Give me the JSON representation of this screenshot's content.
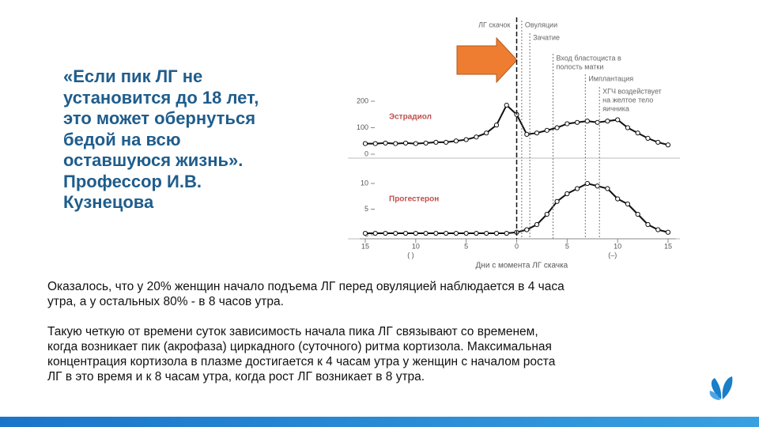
{
  "quote_lines": [
    "«Если пик ЛГ не",
    "установится до 18 лет,",
    "это может обернуться",
    "бедой на всю",
    "оставшуюся жизнь».",
    "Профессор И.В.",
    "Кузнецова"
  ],
  "paragraphs": [
    [
      "Оказалось, что у 20% женщин начало подъема ЛГ перед овуляцией наблюдается в 4 часа",
      "утра, а у остальных 80% - в 8 часов утра."
    ],
    [
      "Такую четкую от времени суток зависимость начала пика ЛГ связывают со временем,",
      "когда возникает пик (акрофаза) циркадного (суточного) ритма кортизола. Максимальная",
      "концентрация кортизола в плазме достигается к 4 часам утра у женщин с началом роста",
      "ЛГ в это время и к 8 часам утра, когда рост ЛГ возникает в 8 утра."
    ]
  ],
  "figure": {
    "type": "line",
    "x": [
      -15,
      -14,
      -13,
      -12,
      -11,
      -10,
      -9,
      -8,
      -7,
      -6,
      -5,
      -4,
      -3,
      -2,
      -1,
      0,
      1,
      2,
      3,
      4,
      5,
      6,
      7,
      8,
      9,
      10,
      11,
      12,
      13,
      14,
      15
    ],
    "xlim": [
      -15,
      15
    ],
    "xticks": [
      {
        "value": -15,
        "label": "15"
      },
      {
        "value": -10,
        "label": "10"
      },
      {
        "value": -5,
        "label": "5"
      },
      0,
      5,
      10,
      15
    ],
    "xlabel": "Дни с момента ЛГ скачка",
    "sign_labels": [
      "( )",
      "(–)"
    ],
    "panels": [
      {
        "name": "Эстрадиол",
        "ylim": [
          0,
          200
        ],
        "yticks": [
          0,
          100,
          200
        ],
        "values": [
          40,
          40,
          42,
          40,
          42,
          40,
          42,
          45,
          45,
          50,
          55,
          65,
          80,
          110,
          185,
          150,
          75,
          80,
          90,
          100,
          115,
          120,
          125,
          120,
          125,
          130,
          100,
          80,
          60,
          45,
          35
        ]
      },
      {
        "name": "Прогестерон",
        "ylim": [
          0,
          10
        ],
        "yticks": [
          0,
          5,
          10
        ],
        "values": [
          0.3,
          0.3,
          0.3,
          0.3,
          0.3,
          0.3,
          0.3,
          0.3,
          0.3,
          0.3,
          0.3,
          0.3,
          0.3,
          0.3,
          0.3,
          0.5,
          1,
          2,
          4,
          6.5,
          8,
          9,
          10,
          9.5,
          9,
          7,
          6,
          4,
          2,
          1,
          0.5
        ]
      }
    ],
    "events": [
      {
        "label": [
          "ЛГ скачок"
        ],
        "day": 0
      },
      {
        "label": [
          "Овуляции"
        ],
        "day": 0.5
      },
      {
        "label": [
          "Зачатие"
        ],
        "day": 1.3
      },
      {
        "label": [
          "Вход бластоциста в",
          "полость матки"
        ],
        "day": 3.6
      },
      {
        "label": [
          "Имплантация"
        ],
        "day": 6.8
      },
      {
        "label": [
          "ХГЧ воздействует",
          "на желтое тело",
          "яичника"
        ],
        "day": 8.2
      }
    ]
  }
}
